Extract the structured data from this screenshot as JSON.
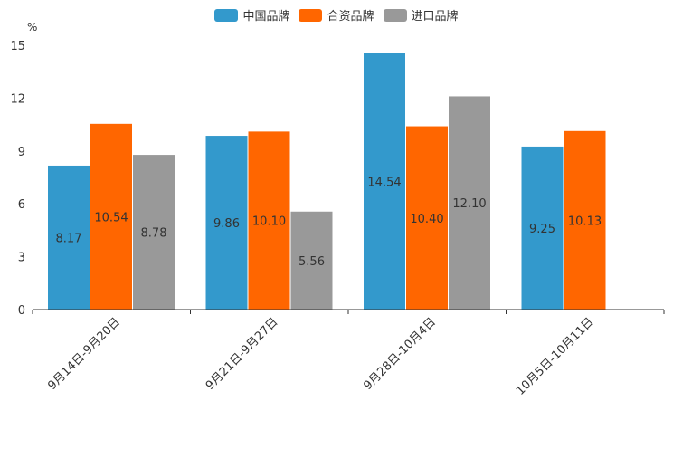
{
  "chart_data": {
    "type": "bar",
    "ylabel": "%",
    "ylim": [
      0,
      15
    ],
    "yticks": [
      "0",
      "3",
      "6",
      "9",
      "12",
      "15"
    ],
    "categories": [
      "9月14日-9月20日",
      "9月21日-9月27日",
      "9月28日-10月4日",
      "10月5日-10月11日"
    ],
    "series": [
      {
        "name": "中国品牌",
        "color": "#3399cc",
        "values": [
          8.17,
          9.86,
          14.54,
          9.25
        ],
        "labels": [
          "8.17",
          "9.86",
          "14.54",
          "9.25"
        ]
      },
      {
        "name": "合资品牌",
        "color": "#ff6600",
        "values": [
          10.54,
          10.1,
          10.4,
          10.13
        ],
        "labels": [
          "10.54",
          "10.10",
          "10.40",
          "10.13"
        ]
      },
      {
        "name": "进口品牌",
        "color": "#999999",
        "values": [
          8.78,
          5.56,
          12.1,
          null
        ],
        "labels": [
          "8.78",
          "5.56",
          "12.10",
          null
        ]
      }
    ],
    "legend_position": "top-center"
  }
}
